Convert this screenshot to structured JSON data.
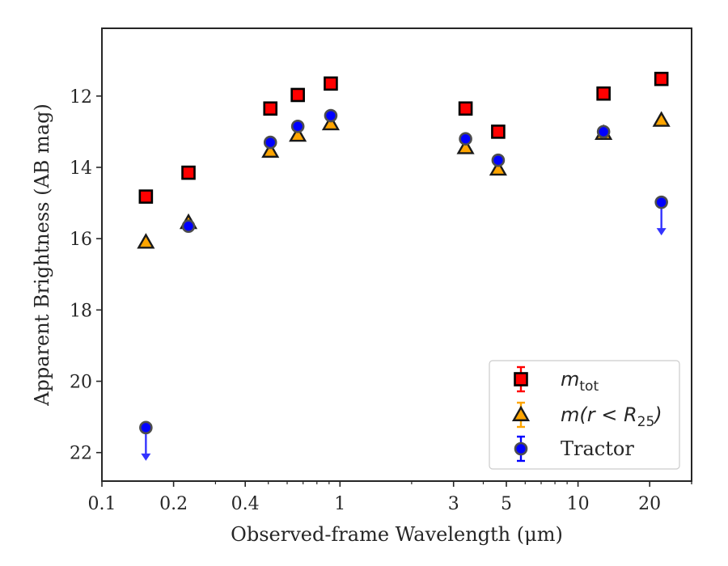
{
  "chart_data": {
    "type": "scatter",
    "xlabel": "Observed-frame Wavelength (μm)",
    "ylabel": "Apparent Brightness (AB mag)",
    "x_scale": "log",
    "xlim": [
      0.1,
      30
    ],
    "ylim": [
      22.8,
      10.1
    ],
    "y_inverted": true,
    "x_ticks": [
      {
        "value": 0.1,
        "label": "0.1"
      },
      {
        "value": 0.2,
        "label": "0.2"
      },
      {
        "value": 0.4,
        "label": "0.4"
      },
      {
        "value": 1,
        "label": "1"
      },
      {
        "value": 3,
        "label": "3"
      },
      {
        "value": 5,
        "label": "5"
      },
      {
        "value": 10,
        "label": "10"
      },
      {
        "value": 20,
        "label": "20"
      }
    ],
    "y_ticks": [
      {
        "value": 12,
        "label": "12"
      },
      {
        "value": 14,
        "label": "14"
      },
      {
        "value": 16,
        "label": "16"
      },
      {
        "value": 18,
        "label": "18"
      },
      {
        "value": 20,
        "label": "20"
      },
      {
        "value": 22,
        "label": "22"
      }
    ],
    "grid": false,
    "legend_position": "bottom-right",
    "series": [
      {
        "name": "m_tot",
        "marker": "square",
        "color": "#ff0000",
        "points": [
          {
            "x": 0.153,
            "y": 14.82
          },
          {
            "x": 0.231,
            "y": 14.15
          },
          {
            "x": 0.51,
            "y": 12.35
          },
          {
            "x": 0.665,
            "y": 11.97
          },
          {
            "x": 0.915,
            "y": 11.65
          },
          {
            "x": 3.37,
            "y": 12.35
          },
          {
            "x": 4.62,
            "y": 13.0
          },
          {
            "x": 12.8,
            "y": 11.93
          },
          {
            "x": 22.4,
            "y": 11.52
          }
        ]
      },
      {
        "name": "m(r < R_25)",
        "marker": "triangle",
        "color": "#ffa500",
        "points": [
          {
            "x": 0.153,
            "y": 16.1
          },
          {
            "x": 0.231,
            "y": 15.55
          },
          {
            "x": 0.51,
            "y": 13.55
          },
          {
            "x": 0.665,
            "y": 13.1
          },
          {
            "x": 0.915,
            "y": 12.78
          },
          {
            "x": 3.37,
            "y": 13.45
          },
          {
            "x": 4.62,
            "y": 14.05
          },
          {
            "x": 12.8,
            "y": 13.05
          },
          {
            "x": 22.4,
            "y": 12.68
          }
        ]
      },
      {
        "name": "Tractor",
        "marker": "circle",
        "color": "#0000ff",
        "points": [
          {
            "x": 0.153,
            "y": 21.3,
            "upper_limit": true
          },
          {
            "x": 0.231,
            "y": 15.65
          },
          {
            "x": 0.51,
            "y": 13.3
          },
          {
            "x": 0.665,
            "y": 12.85
          },
          {
            "x": 0.915,
            "y": 12.55
          },
          {
            "x": 3.37,
            "y": 13.2
          },
          {
            "x": 4.62,
            "y": 13.8
          },
          {
            "x": 12.8,
            "y": 13.0
          },
          {
            "x": 22.4,
            "y": 14.98,
            "upper_limit": true
          }
        ]
      }
    ],
    "legend": [
      {
        "series": "m_tot",
        "main": "m",
        "sub": "tot",
        "tail": ""
      },
      {
        "series": "m(r < R_25)",
        "main": "m(r < R",
        "sub": "25",
        "tail": ")"
      },
      {
        "series": "Tractor",
        "text": "Tractor"
      }
    ]
  }
}
